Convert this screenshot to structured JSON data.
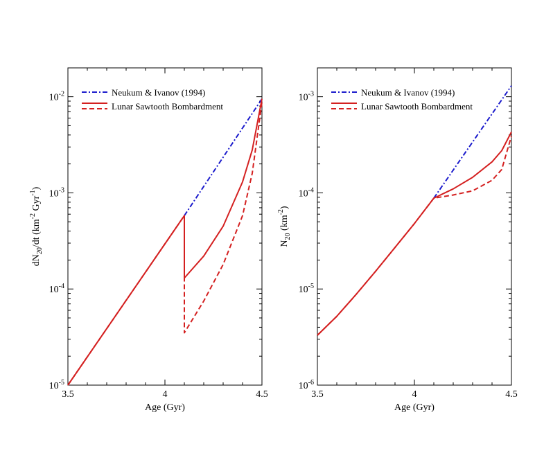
{
  "chart_data": [
    {
      "type": "line",
      "id": "left",
      "xlabel": "Age (Gyr)",
      "ylabel": {
        "base": "dN",
        "sub": "20",
        "rest": "/dt (km",
        "sup1": "-2",
        "mid": " Gyr",
        "sup2": "-1",
        "end": ")"
      },
      "xlim": [
        3.5,
        4.5
      ],
      "ylim_log10": [
        -5,
        -1.7
      ],
      "xticks": [
        {
          "v": 3.5,
          "label": "3.5"
        },
        {
          "v": 4.0,
          "label": "4"
        },
        {
          "v": 4.5,
          "label": "4.5"
        }
      ],
      "yticks": [
        {
          "exp": -5,
          "base": "10",
          "sup": "-5"
        },
        {
          "exp": -4,
          "base": "10",
          "sup": "-4"
        },
        {
          "exp": -3,
          "base": "10",
          "sup": "-3"
        },
        {
          "exp": -2,
          "base": "10",
          "sup": "-2"
        }
      ],
      "legend": {
        "position": "top-left",
        "entries": [
          "Neukum & Ivanov (1994)",
          "Lunar Sawtooth Bombardment"
        ]
      },
      "series": [
        {
          "name": "Neukum & Ivanov (1994)",
          "style": "dash-dot",
          "color": "#1a1acc",
          "x": [
            4.1,
            4.5
          ],
          "y": [
            0.00058,
            0.0095
          ]
        },
        {
          "name": "Lunar Sawtooth Bombardment (solid)",
          "style": "solid",
          "color": "#d42020",
          "x": [
            3.5,
            4.1,
            4.1,
            4.2,
            4.3,
            4.4,
            4.45,
            4.5
          ],
          "y": [
            1e-05,
            0.00058,
            0.00013,
            0.00022,
            0.00045,
            0.0013,
            0.0028,
            0.0095
          ]
        },
        {
          "name": "Lunar Sawtooth Bombardment (dashed)",
          "style": "dashed",
          "color": "#d42020",
          "x": [
            3.5,
            4.1,
            4.1,
            4.2,
            4.3,
            4.4,
            4.45,
            4.5
          ],
          "y": [
            1e-05,
            0.00058,
            3.5e-05,
            7.5e-05,
            0.00018,
            0.00058,
            0.0016,
            0.0088
          ]
        }
      ]
    },
    {
      "type": "line",
      "id": "right",
      "xlabel": "Age (Gyr)",
      "ylabel": {
        "base": "N",
        "sub": "20",
        "rest": " (km",
        "sup1": "-2",
        "end": ")"
      },
      "xlim": [
        3.5,
        4.5
      ],
      "ylim_log10": [
        -6,
        -2.7
      ],
      "xticks": [
        {
          "v": 3.5,
          "label": "3.5"
        },
        {
          "v": 4.0,
          "label": "4"
        },
        {
          "v": 4.5,
          "label": "4.5"
        }
      ],
      "yticks": [
        {
          "exp": -6,
          "base": "10",
          "sup": "-6"
        },
        {
          "exp": -5,
          "base": "10",
          "sup": "-5"
        },
        {
          "exp": -4,
          "base": "10",
          "sup": "-4"
        },
        {
          "exp": -3,
          "base": "10",
          "sup": "-3"
        }
      ],
      "legend": {
        "position": "top-left",
        "entries": [
          "Neukum & Ivanov (1994)",
          "Lunar Sawtooth Bombardment"
        ]
      },
      "series": [
        {
          "name": "Neukum & Ivanov (1994)",
          "style": "dash-dot",
          "color": "#1a1acc",
          "x": [
            4.1,
            4.5
          ],
          "y": [
            8.8e-05,
            0.0013
          ]
        },
        {
          "name": "Lunar Sawtooth Bombardment (solid)",
          "style": "solid",
          "color": "#d42020",
          "x": [
            3.5,
            3.6,
            3.7,
            3.8,
            3.9,
            4.0,
            4.1,
            4.2,
            4.3,
            4.4,
            4.45,
            4.5
          ],
          "y": [
            3.3e-06,
            5.2e-06,
            8.8e-06,
            1.53e-05,
            2.7e-05,
            4.8e-05,
            8.8e-05,
            0.00011,
            0.000145,
            0.00021,
            0.000275,
            0.00043
          ]
        },
        {
          "name": "Lunar Sawtooth Bombardment (dashed)",
          "style": "dashed",
          "color": "#d42020",
          "x": [
            3.5,
            3.6,
            3.7,
            3.8,
            3.9,
            4.0,
            4.1,
            4.2,
            4.3,
            4.4,
            4.45,
            4.5
          ],
          "y": [
            3.3e-06,
            5.2e-06,
            8.8e-06,
            1.53e-05,
            2.7e-05,
            4.8e-05,
            8.8e-05,
            9.5e-05,
            0.000105,
            0.000135,
            0.000175,
            0.00039
          ]
        }
      ]
    }
  ]
}
